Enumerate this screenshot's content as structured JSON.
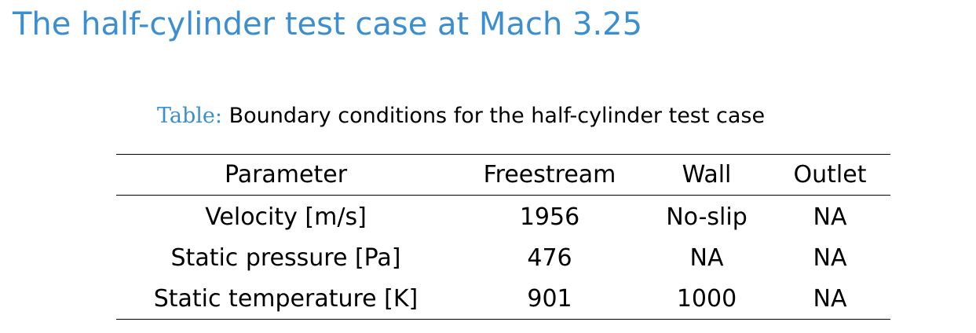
{
  "title": "The half-cylinder test case at Mach 3.25",
  "caption": {
    "label": "Table:",
    "text": "Boundary conditions for the half-cylinder test case"
  },
  "table": {
    "headers": [
      "Parameter",
      "Freestream",
      "Wall",
      "Outlet"
    ],
    "rows": [
      [
        "Velocity [m/s]",
        "1956",
        "No-slip",
        "NA"
      ],
      [
        "Static pressure [Pa]",
        "476",
        "NA",
        "NA"
      ],
      [
        "Static temperature [K]",
        "901",
        "1000",
        "NA"
      ]
    ]
  },
  "colors": {
    "accent": "#3b8fd1",
    "text": "#000000",
    "background": "#ffffff"
  }
}
